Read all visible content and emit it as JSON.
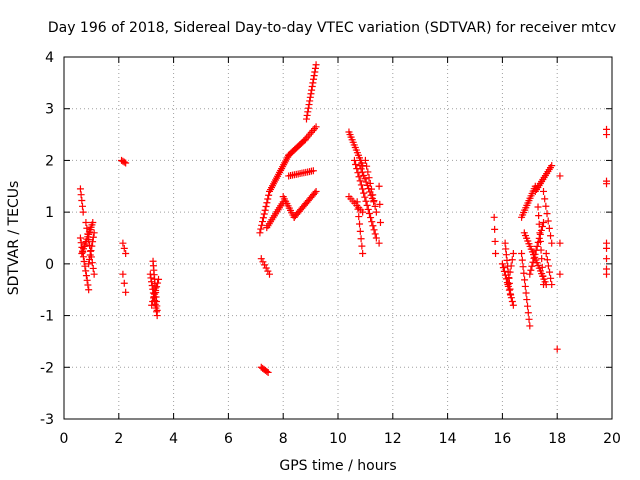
{
  "chart_data": {
    "type": "scatter",
    "title": "Day 196 of 2018, Sidereal Day-to-day VTEC variation (SDTVAR) for receiver mtcv",
    "xlabel": "GPS time / hours",
    "ylabel": "SDTVAR / TECUs",
    "xlim": [
      0,
      20
    ],
    "ylim": [
      -3,
      4
    ],
    "grid": true,
    "marker": "+",
    "marker_color": "#ff0000",
    "x_ticks": [
      0,
      2,
      4,
      6,
      8,
      10,
      12,
      14,
      16,
      18,
      20
    ],
    "y_ticks": [
      -3,
      -2,
      -1,
      0,
      1,
      2,
      3,
      4
    ],
    "x_tick_labels": [
      "0",
      "2",
      "4",
      "6",
      "8",
      "10",
      "12",
      "14",
      "16",
      "18",
      "20"
    ],
    "y_tick_labels": [
      "-3",
      "-2",
      "-1",
      "0",
      "1",
      "2",
      "3",
      "4"
    ],
    "series": [
      {
        "name": "SDTVAR",
        "segments": [
          {
            "start": [
              0.6,
              1.45
            ],
            "end": [
              0.7,
              1.0
            ],
            "n": 5
          },
          {
            "start": [
              0.6,
              0.5
            ],
            "end": [
              0.9,
              -0.5
            ],
            "n": 12
          },
          {
            "start": [
              0.65,
              0.2
            ],
            "end": [
              1.05,
              0.8
            ],
            "n": 14
          },
          {
            "start": [
              0.8,
              0.8
            ],
            "end": [
              1.1,
              -0.2
            ],
            "n": 10
          },
          {
            "start": [
              0.9,
              0.0
            ],
            "end": [
              1.1,
              0.6
            ],
            "n": 8
          },
          {
            "start": [
              2.1,
              2.0
            ],
            "end": [
              2.25,
              1.95
            ],
            "n": 4
          },
          {
            "start": [
              2.15,
              0.4
            ],
            "end": [
              2.25,
              0.2
            ],
            "n": 3
          },
          {
            "start": [
              2.15,
              -0.2
            ],
            "end": [
              2.25,
              -0.55
            ],
            "n": 3
          },
          {
            "start": [
              3.15,
              -0.2
            ],
            "end": [
              3.4,
              -1.0
            ],
            "n": 12
          },
          {
            "start": [
              3.25,
              0.05
            ],
            "end": [
              3.4,
              -0.9
            ],
            "n": 12
          },
          {
            "start": [
              3.2,
              -0.8
            ],
            "end": [
              3.45,
              -0.3
            ],
            "n": 8
          },
          {
            "start": [
              7.2,
              -2.0
            ],
            "end": [
              7.45,
              -2.1
            ],
            "n": 6
          },
          {
            "start": [
              7.2,
              0.1
            ],
            "end": [
              7.5,
              -0.2
            ],
            "n": 6
          },
          {
            "start": [
              7.15,
              0.6
            ],
            "end": [
              7.5,
              1.4
            ],
            "n": 12
          },
          {
            "start": [
              7.5,
              1.4
            ],
            "end": [
              8.2,
              2.1
            ],
            "n": 20
          },
          {
            "start": [
              8.2,
              2.1
            ],
            "end": [
              8.8,
              2.4
            ],
            "n": 14
          },
          {
            "start": [
              8.8,
              2.4
            ],
            "end": [
              9.2,
              2.65
            ],
            "n": 8
          },
          {
            "start": [
              8.85,
              2.8
            ],
            "end": [
              9.2,
              3.85
            ],
            "n": 16
          },
          {
            "start": [
              7.4,
              0.7
            ],
            "end": [
              8.0,
              1.2
            ],
            "n": 14
          },
          {
            "start": [
              8.0,
              1.3
            ],
            "end": [
              8.4,
              0.9
            ],
            "n": 10
          },
          {
            "start": [
              8.4,
              0.9
            ],
            "end": [
              9.2,
              1.4
            ],
            "n": 18
          },
          {
            "start": [
              8.2,
              1.7
            ],
            "end": [
              9.1,
              1.8
            ],
            "n": 14
          },
          {
            "start": [
              10.4,
              2.55
            ],
            "end": [
              10.9,
              1.9
            ],
            "n": 14
          },
          {
            "start": [
              10.4,
              1.3
            ],
            "end": [
              10.9,
              1.0
            ],
            "n": 8
          },
          {
            "start": [
              10.6,
              2.0
            ],
            "end": [
              11.4,
              0.5
            ],
            "n": 20
          },
          {
            "start": [
              10.7,
              1.2
            ],
            "end": [
              10.9,
              0.2
            ],
            "n": 8
          },
          {
            "start": [
              10.8,
              1.9
            ],
            "end": [
              11.3,
              1.2
            ],
            "n": 12
          },
          {
            "start": [
              11.0,
              2.0
            ],
            "end": [
              11.4,
              1.0
            ],
            "n": 10
          },
          {
            "start": [
              11.5,
              1.5
            ],
            "end": [
              11.55,
              0.8
            ],
            "n": 3
          },
          {
            "start": [
              11.5,
              0.4
            ],
            "end": [
              11.5,
              0.4
            ],
            "n": 1
          },
          {
            "start": [
              15.7,
              0.9
            ],
            "end": [
              15.75,
              0.2
            ],
            "n": 4
          },
          {
            "start": [
              16.0,
              0.0
            ],
            "end": [
              16.4,
              -0.8
            ],
            "n": 12
          },
          {
            "start": [
              16.1,
              0.4
            ],
            "end": [
              16.3,
              -0.6
            ],
            "n": 10
          },
          {
            "start": [
              16.2,
              -0.4
            ],
            "end": [
              16.4,
              0.2
            ],
            "n": 6
          },
          {
            "start": [
              16.7,
              0.2
            ],
            "end": [
              17.0,
              -1.2
            ],
            "n": 12
          },
          {
            "start": [
              16.7,
              0.9
            ],
            "end": [
              17.2,
              1.5
            ],
            "n": 14
          },
          {
            "start": [
              16.8,
              0.6
            ],
            "end": [
              17.6,
              -0.4
            ],
            "n": 20
          },
          {
            "start": [
              17.0,
              -0.2
            ],
            "end": [
              17.5,
              0.8
            ],
            "n": 14
          },
          {
            "start": [
              17.2,
              1.4
            ],
            "end": [
              17.8,
              1.9
            ],
            "n": 14
          },
          {
            "start": [
              17.3,
              1.1
            ],
            "end": [
              17.5,
              -0.4
            ],
            "n": 10
          },
          {
            "start": [
              17.5,
              1.4
            ],
            "end": [
              17.8,
              0.4
            ],
            "n": 8
          },
          {
            "start": [
              17.6,
              0.2
            ],
            "end": [
              17.8,
              -0.4
            ],
            "n": 6
          },
          {
            "start": [
              18.1,
              1.7
            ],
            "end": [
              18.1,
              1.7
            ],
            "n": 1
          },
          {
            "start": [
              18.1,
              0.4
            ],
            "end": [
              18.1,
              -0.2
            ],
            "n": 2
          },
          {
            "start": [
              18.0,
              -1.65
            ],
            "end": [
              18.0,
              -1.65
            ],
            "n": 1
          },
          {
            "start": [
              19.8,
              2.6
            ],
            "end": [
              19.8,
              2.5
            ],
            "n": 2
          },
          {
            "start": [
              19.8,
              1.6
            ],
            "end": [
              19.8,
              1.55
            ],
            "n": 2
          },
          {
            "start": [
              19.8,
              0.4
            ],
            "end": [
              19.8,
              0.3
            ],
            "n": 2
          },
          {
            "start": [
              19.8,
              0.1
            ],
            "end": [
              19.8,
              0.1
            ],
            "n": 1
          },
          {
            "start": [
              19.8,
              -0.1
            ],
            "end": [
              19.8,
              -0.2
            ],
            "n": 2
          }
        ]
      }
    ]
  }
}
